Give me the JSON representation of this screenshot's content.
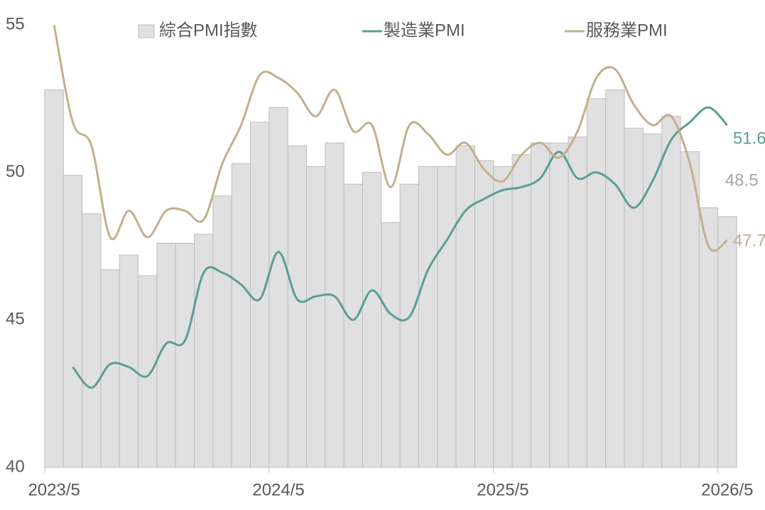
{
  "chart_data": {
    "type": "combo",
    "categories": [
      "2023/5",
      null,
      null,
      null,
      null,
      null,
      null,
      null,
      null,
      null,
      null,
      null,
      "2024/5",
      null,
      null,
      null,
      null,
      null,
      null,
      null,
      null,
      null,
      null,
      null,
      "2025/5",
      null,
      null,
      null,
      null,
      null,
      null,
      null,
      null,
      null,
      null,
      null,
      "2026/5"
    ],
    "series": [
      {
        "name": "綜合PMI指數",
        "type": "bar",
        "color": "#e0e0e0",
        "label_color": "#a6a6a6",
        "values": [
          52.8,
          49.9,
          48.6,
          46.7,
          47.2,
          46.5,
          47.6,
          47.6,
          47.9,
          49.2,
          50.3,
          51.7,
          52.2,
          50.9,
          50.2,
          51.0,
          49.6,
          50.0,
          48.3,
          49.6,
          50.2,
          50.2,
          50.9,
          50.4,
          50.2,
          50.6,
          51.0,
          51.0,
          51.2,
          52.5,
          52.8,
          51.5,
          51.3,
          51.9,
          50.7,
          48.8,
          48.5
        ]
      },
      {
        "name": "製造業PMI",
        "type": "line",
        "color": "#5a9e95",
        "label_color": "#5a9e95",
        "values": [
          null,
          43.4,
          42.7,
          43.5,
          43.4,
          43.1,
          44.2,
          44.3,
          46.6,
          46.6,
          46.2,
          45.7,
          47.3,
          45.7,
          45.8,
          45.8,
          45.0,
          46.0,
          45.2,
          45.1,
          46.7,
          47.7,
          48.7,
          49.1,
          49.4,
          49.5,
          49.8,
          50.7,
          49.8,
          50.0,
          49.6,
          48.8,
          49.7,
          51.1,
          51.7,
          52.2,
          51.6
        ]
      },
      {
        "name": "服務業PMI",
        "type": "line",
        "color": "#c2b08a",
        "label_color": "#c2b08a",
        "values": [
          55.0,
          51.7,
          50.9,
          47.8,
          48.7,
          47.8,
          48.7,
          48.7,
          48.4,
          50.3,
          51.6,
          53.3,
          53.2,
          52.7,
          51.9,
          52.8,
          51.4,
          51.6,
          49.5,
          51.6,
          51.3,
          50.6,
          51.0,
          50.1,
          49.7,
          50.6,
          51.0,
          50.5,
          51.4,
          53.2,
          53.5,
          52.3,
          51.6,
          51.9,
          50.3,
          47.5,
          47.7
        ]
      }
    ],
    "ylim": [
      40,
      55
    ],
    "yticks": [
      40,
      45,
      50,
      55
    ],
    "grid": false,
    "legend": "top",
    "end_labels": true
  }
}
